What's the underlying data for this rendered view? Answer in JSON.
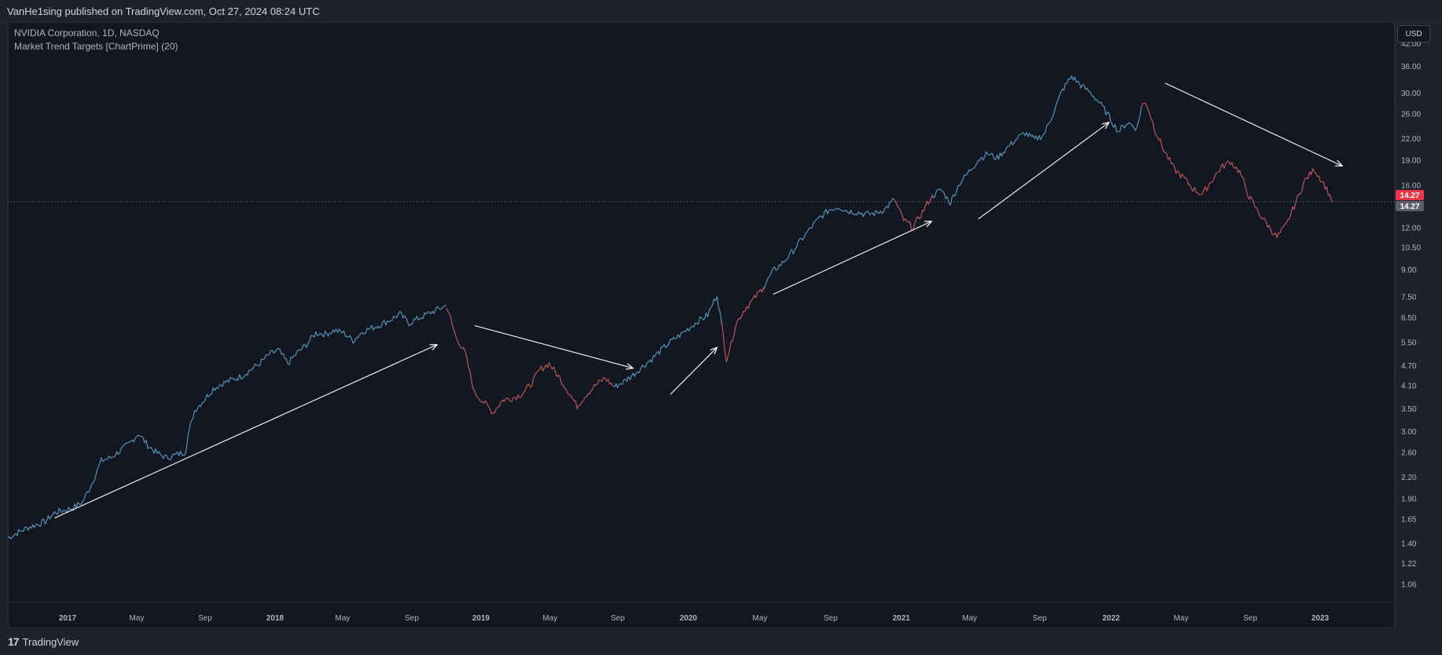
{
  "publisher_line": "VanHe1sing published on TradingView.com, Oct 27, 2024 08:24 UTC",
  "legend": {
    "symbol_line": "NVIDIA Corporation, 1D, NASDAQ",
    "indicator_line": "Market Trend Targets [ChartPrime] (20)"
  },
  "currency_button": "USD",
  "brand": "TradingView",
  "colors": {
    "background": "#131722",
    "bull": "#5b9cc0",
    "bear": "#c85a5f",
    "arrow": "#ffffff",
    "price_label_red": "#f23645",
    "price_label_grey": "#5d606b",
    "axis_text": "#b2b5be"
  },
  "chart_data": {
    "type": "line",
    "scale": "log",
    "xlabel": "",
    "ylabel": "",
    "ylim": [
      0.95,
      45
    ],
    "y_ticks": [
      "42.00",
      "36.00",
      "30.00",
      "26.00",
      "22.00",
      "19.00",
      "16.00",
      "12.00",
      "10.50",
      "9.00",
      "7.50",
      "6.50",
      "5.50",
      "4.70",
      "4.10",
      "3.50",
      "3.00",
      "2.60",
      "2.20",
      "1.90",
      "1.65",
      "1.40",
      "1.22",
      "1.06"
    ],
    "x_ticks": [
      "2017",
      "May",
      "Sep",
      "2018",
      "May",
      "Sep",
      "2019",
      "May",
      "Sep",
      "2020",
      "May",
      "Sep",
      "2021",
      "May",
      "Sep",
      "2022",
      "May",
      "Sep",
      "2023"
    ],
    "last_price_labels": [
      "14.27",
      "14.27"
    ],
    "series": [
      {
        "trend": "bull",
        "values": [
          [
            0,
            1.45
          ],
          [
            2,
            1.55
          ],
          [
            4,
            1.62
          ],
          [
            5,
            1.72
          ],
          [
            7,
            1.78
          ],
          [
            8,
            1.85
          ],
          [
            9,
            2.1
          ],
          [
            10,
            2.45
          ],
          [
            11,
            2.5
          ],
          [
            12,
            2.62
          ],
          [
            13,
            2.75
          ],
          [
            14,
            2.95
          ],
          [
            15,
            2.72
          ],
          [
            16,
            2.58
          ],
          [
            17,
            2.5
          ],
          [
            18,
            2.55
          ],
          [
            19,
            2.6
          ],
          [
            19.3,
            2.9
          ],
          [
            20,
            3.45
          ],
          [
            21,
            3.7
          ],
          [
            22,
            4.0
          ],
          [
            23,
            4.15
          ],
          [
            24,
            4.25
          ],
          [
            25,
            4.35
          ],
          [
            26,
            4.55
          ],
          [
            27,
            4.75
          ],
          [
            28,
            5.05
          ],
          [
            29,
            5.2
          ],
          [
            30,
            4.75
          ],
          [
            31,
            5.1
          ],
          [
            32,
            5.4
          ],
          [
            33,
            5.85
          ],
          [
            34,
            5.8
          ],
          [
            35,
            5.95
          ],
          [
            36,
            5.85
          ],
          [
            37,
            5.55
          ],
          [
            38,
            5.9
          ],
          [
            39,
            6.05
          ],
          [
            40,
            6.2
          ],
          [
            41,
            6.4
          ],
          [
            42,
            6.65
          ],
          [
            43,
            6.25
          ],
          [
            44,
            6.45
          ],
          [
            45,
            6.65
          ],
          [
            46,
            6.85
          ],
          [
            47,
            7.05
          ]
        ]
      },
      {
        "trend": "bear",
        "values": [
          [
            47,
            7.05
          ],
          [
            48,
            5.7
          ],
          [
            49,
            5.1
          ],
          [
            50,
            3.9
          ],
          [
            51,
            3.65
          ],
          [
            52,
            3.4
          ],
          [
            53,
            3.7
          ],
          [
            54,
            3.75
          ],
          [
            55,
            3.85
          ],
          [
            56,
            4.1
          ],
          [
            57,
            4.55
          ],
          [
            58,
            4.75
          ],
          [
            59,
            4.35
          ],
          [
            60,
            3.95
          ],
          [
            61,
            3.55
          ],
          [
            62,
            3.85
          ],
          [
            63,
            4.1
          ],
          [
            64,
            4.3
          ],
          [
            65,
            4.05
          ]
        ]
      },
      {
        "trend": "bull",
        "values": [
          [
            65,
            4.05
          ],
          [
            66,
            4.2
          ],
          [
            67,
            4.4
          ],
          [
            68,
            4.65
          ],
          [
            69,
            4.9
          ],
          [
            70,
            5.2
          ],
          [
            71,
            5.5
          ],
          [
            72,
            5.75
          ],
          [
            73,
            6.05
          ],
          [
            74,
            6.35
          ],
          [
            75,
            6.6
          ],
          [
            76,
            7.6
          ],
          [
            76.5,
            6.2
          ]
        ]
      },
      {
        "trend": "bear",
        "values": [
          [
            76.5,
            6.2
          ],
          [
            77,
            4.9
          ],
          [
            77.5,
            5.4
          ],
          [
            78,
            6.2
          ],
          [
            79,
            6.9
          ],
          [
            80,
            7.4
          ],
          [
            81,
            8.0
          ]
        ]
      },
      {
        "trend": "bull",
        "values": [
          [
            81,
            8.0
          ],
          [
            82,
            8.9
          ],
          [
            83,
            9.4
          ],
          [
            84,
            10.1
          ],
          [
            85,
            11.0
          ],
          [
            86,
            11.9
          ],
          [
            87,
            12.8
          ],
          [
            88,
            13.5
          ],
          [
            89,
            13.8
          ],
          [
            90,
            13.4
          ],
          [
            91,
            13.3
          ],
          [
            92,
            13.1
          ],
          [
            93,
            13.2
          ],
          [
            94,
            13.6
          ],
          [
            95,
            14.5
          ]
        ]
      },
      {
        "trend": "bear",
        "values": [
          [
            95,
            14.5
          ],
          [
            96,
            12.6
          ],
          [
            97,
            12.0
          ],
          [
            98,
            13.3
          ],
          [
            99,
            14.8
          ]
        ]
      },
      {
        "trend": "bull",
        "values": [
          [
            99,
            14.8
          ],
          [
            100,
            15.5
          ],
          [
            101,
            14.2
          ],
          [
            102,
            16.2
          ],
          [
            103,
            17.5
          ],
          [
            104,
            19.0
          ],
          [
            105,
            19.8
          ],
          [
            106,
            19.2
          ],
          [
            107,
            20.5
          ],
          [
            108,
            21.8
          ],
          [
            109,
            22.8
          ],
          [
            110,
            21.8
          ],
          [
            111,
            22.5
          ],
          [
            112,
            26.0
          ],
          [
            113,
            30.5
          ],
          [
            114,
            33.5
          ],
          [
            115,
            31.5
          ],
          [
            116,
            30.0
          ],
          [
            117,
            28.0
          ],
          [
            118,
            25.5
          ],
          [
            119,
            23.0
          ],
          [
            120,
            24.5
          ],
          [
            121,
            23.5
          ],
          [
            121.5,
            27.5
          ]
        ]
      },
      {
        "trend": "bear",
        "values": [
          [
            121.5,
            27.5
          ],
          [
            122,
            28.0
          ],
          [
            123,
            23.0
          ],
          [
            124,
            20.0
          ],
          [
            125,
            17.8
          ],
          [
            126,
            16.8
          ],
          [
            127,
            15.6
          ],
          [
            128,
            15.0
          ],
          [
            129,
            16.5
          ],
          [
            130,
            18.0
          ],
          [
            131,
            18.8
          ],
          [
            132,
            17.5
          ],
          [
            133,
            14.8
          ],
          [
            134,
            13.3
          ],
          [
            135,
            12.2
          ],
          [
            136,
            11.2
          ],
          [
            137,
            12.2
          ],
          [
            138,
            14.2
          ],
          [
            139,
            16.5
          ],
          [
            140,
            17.8
          ],
          [
            141,
            16.2
          ],
          [
            142,
            14.27
          ]
        ]
      }
    ],
    "annotations": [
      {
        "type": "arrow",
        "from": [
          5,
          1.66
        ],
        "to": [
          46,
          5.4
        ]
      },
      {
        "type": "arrow",
        "from": [
          50,
          6.15
        ],
        "to": [
          67,
          4.6
        ]
      },
      {
        "type": "arrow",
        "from": [
          71,
          3.85
        ],
        "to": [
          76,
          5.3
        ]
      },
      {
        "type": "arrow",
        "from": [
          82,
          7.6
        ],
        "to": [
          99,
          12.5
        ]
      },
      {
        "type": "arrow",
        "from": [
          104,
          12.7
        ],
        "to": [
          118,
          24.5
        ]
      },
      {
        "type": "arrow",
        "from": [
          124,
          32.0
        ],
        "to": [
          143,
          18.2
        ]
      }
    ]
  }
}
